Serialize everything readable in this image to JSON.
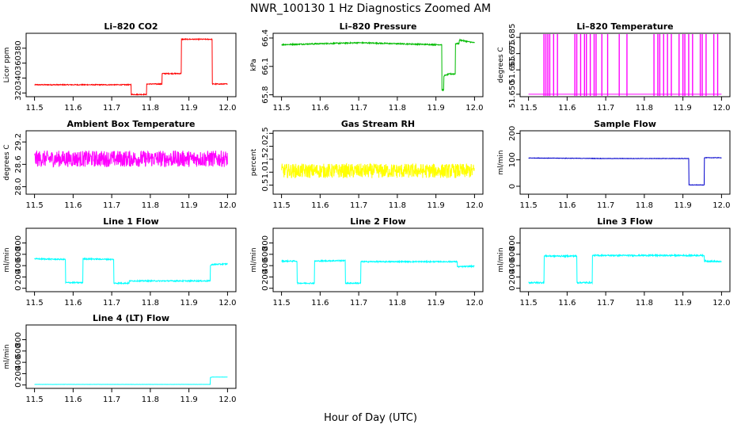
{
  "figure": {
    "title": "NWR_100130  1 Hz Diagnostics Zoomed AM",
    "xlabel": "Hour of Day (UTC)"
  },
  "chart_data": [
    {
      "type": "line",
      "title": "Li–820 CO2",
      "ylabel": "Licor ppm",
      "color": "#ff0000",
      "xlim": [
        11.5,
        12.0
      ],
      "ylim": [
        315,
        400
      ],
      "xticks": [
        11.5,
        11.6,
        11.7,
        11.8,
        11.9,
        12.0
      ],
      "xtick_labels": [
        "11.5",
        "11.6",
        "11.7",
        "11.8",
        "11.9",
        "12.0"
      ],
      "yticks": [
        320,
        340,
        360,
        380
      ],
      "ytick_labels": [
        "320",
        "340",
        "360",
        "380"
      ],
      "x": [
        11.5,
        11.6,
        11.75,
        11.75,
        11.79,
        11.79,
        11.83,
        11.83,
        11.88,
        11.88,
        11.96,
        11.96,
        12.0
      ],
      "y": [
        331,
        331,
        331,
        318,
        318,
        332,
        332,
        346,
        346,
        392,
        392,
        332,
        332
      ],
      "noise": 0.6,
      "spikes": []
    },
    {
      "type": "line",
      "title": "Li–820 Pressure",
      "ylabel": "kPa",
      "color": "#00bb00",
      "xlim": [
        11.5,
        12.0
      ],
      "ylim": [
        65.78,
        66.45
      ],
      "xticks": [
        11.5,
        11.6,
        11.7,
        11.8,
        11.9,
        12.0
      ],
      "xtick_labels": [
        "11.5",
        "11.6",
        "11.7",
        "11.8",
        "11.9",
        "12.0"
      ],
      "yticks": [
        65.8,
        66.1,
        66.4
      ],
      "ytick_labels": [
        "65.8",
        "66.1",
        "66.4"
      ],
      "x": [
        11.5,
        11.6,
        11.7,
        11.8,
        11.9,
        11.915,
        11.915,
        11.92,
        11.92,
        11.935,
        11.95,
        11.95,
        11.96,
        11.96,
        11.985,
        12.0
      ],
      "y": [
        66.33,
        66.34,
        66.35,
        66.34,
        66.33,
        66.33,
        65.85,
        65.85,
        66.0,
        66.02,
        66.02,
        66.34,
        66.34,
        66.38,
        66.36,
        66.35
      ],
      "noise": 0.006,
      "spikes": []
    },
    {
      "type": "line",
      "title": "Li–820 Temperature",
      "ylabel": "degrees C",
      "color": "#ff00ff",
      "xlim": [
        11.5,
        12.0
      ],
      "ylim": [
        51.6485,
        51.6875
      ],
      "xticks": [
        11.5,
        11.6,
        11.7,
        11.8,
        11.9,
        12.0
      ],
      "xtick_labels": [
        "11.5",
        "11.6",
        "11.7",
        "11.8",
        "11.9",
        "12.0"
      ],
      "yticks": [
        51.65,
        51.665,
        51.675,
        51.685
      ],
      "ytick_labels": [
        "51.650",
        "51.665",
        "51.675",
        "51.685"
      ],
      "x": [
        11.5,
        12.0
      ],
      "y": [
        51.65,
        51.65
      ],
      "noise": 0,
      "spikes": [
        11.54,
        11.545,
        11.55,
        11.555,
        11.565,
        11.575,
        11.62,
        11.625,
        11.635,
        11.645,
        11.65,
        11.66,
        11.67,
        11.675,
        11.69,
        11.705,
        11.735,
        11.755,
        11.825,
        11.835,
        11.84,
        11.85,
        11.86,
        11.87,
        11.89,
        11.9,
        11.905,
        11.915,
        11.925,
        11.945,
        11.95,
        11.96,
        11.98,
        11.99
      ]
    },
    {
      "type": "line",
      "title": "Ambient Box Temperature",
      "ylabel": "degrees C",
      "color": "#ff00ff",
      "xlim": [
        11.5,
        12.0
      ],
      "ylim": [
        27.8,
        29.5
      ],
      "xticks": [
        11.5,
        11.6,
        11.7,
        11.8,
        11.9,
        12.0
      ],
      "xtick_labels": [
        "11.5",
        "11.6",
        "11.7",
        "11.8",
        "11.9",
        "12.0"
      ],
      "yticks": [
        28.0,
        28.6,
        29.2
      ],
      "ytick_labels": [
        "28.0",
        "28.6",
        "29.2"
      ],
      "x": [
        11.5,
        12.0
      ],
      "y": [
        28.75,
        28.75
      ],
      "noise": 0.22,
      "spikes": []
    },
    {
      "type": "line",
      "title": "Gas Stream RH",
      "ylabel": "percent",
      "color": "#ffff00",
      "xlim": [
        11.5,
        12.0
      ],
      "ylim": [
        0.15,
        2.6
      ],
      "xticks": [
        11.5,
        11.6,
        11.7,
        11.8,
        11.9,
        12.0
      ],
      "xtick_labels": [
        "11.5",
        "11.6",
        "11.7",
        "11.8",
        "11.9",
        "12.0"
      ],
      "yticks": [
        0.5,
        1.0,
        1.5,
        2.0,
        2.5
      ],
      "ytick_labels": [
        "0.5",
        "1.0",
        "1.5",
        "2.0",
        "2.5"
      ],
      "x": [
        11.5,
        12.0
      ],
      "y": [
        1.05,
        1.05
      ],
      "noise": 0.28,
      "spikes": []
    },
    {
      "type": "line",
      "title": "Sample Flow",
      "ylabel": "ml/min",
      "color": "#0000cc",
      "xlim": [
        11.5,
        12.0
      ],
      "ylim": [
        -30,
        210
      ],
      "xticks": [
        11.5,
        11.6,
        11.7,
        11.8,
        11.9,
        12.0
      ],
      "xtick_labels": [
        "11.5",
        "11.6",
        "11.7",
        "11.8",
        "11.9",
        "12.0"
      ],
      "yticks": [
        0,
        100,
        200
      ],
      "ytick_labels": [
        "0",
        "100",
        "200"
      ],
      "x": [
        11.5,
        11.6,
        11.7,
        11.8,
        11.91,
        11.915,
        11.915,
        11.955,
        11.955,
        12.0
      ],
      "y": [
        107,
        106,
        105,
        105,
        105,
        105,
        5,
        5,
        108,
        108
      ],
      "noise": 0.8,
      "spikes": []
    },
    {
      "type": "line",
      "title": "Line 1 Flow",
      "ylabel": "ml/min",
      "color": "#00ffff",
      "xlim": [
        11.5,
        12.0
      ],
      "ylim": [
        -60,
        1060
      ],
      "xticks": [
        11.5,
        11.6,
        11.7,
        11.8,
        11.9,
        12.0
      ],
      "xtick_labels": [
        "11.5",
        "11.6",
        "11.7",
        "11.8",
        "11.9",
        "12.0"
      ],
      "yticks": [
        0,
        200,
        400,
        600,
        800
      ],
      "ytick_labels": [
        "0",
        "200",
        "400",
        "600",
        "800"
      ],
      "x": [
        11.5,
        11.58,
        11.58,
        11.625,
        11.625,
        11.705,
        11.705,
        11.745,
        11.745,
        11.955,
        11.955,
        11.96,
        12.0
      ],
      "y": [
        520,
        510,
        100,
        100,
        520,
        510,
        90,
        90,
        130,
        130,
        400,
        420,
        430
      ],
      "noise": 10,
      "spikes": []
    },
    {
      "type": "line",
      "title": "Line 2 Flow",
      "ylabel": "ml/min",
      "color": "#00ffff",
      "xlim": [
        11.5,
        12.0
      ],
      "ylim": [
        -60,
        1060
      ],
      "xticks": [
        11.5,
        11.6,
        11.7,
        11.8,
        11.9,
        12.0
      ],
      "xtick_labels": [
        "11.5",
        "11.6",
        "11.7",
        "11.8",
        "11.9",
        "12.0"
      ],
      "yticks": [
        0,
        200,
        400,
        600,
        800
      ],
      "ytick_labels": [
        "0",
        "200",
        "400",
        "600",
        "800"
      ],
      "x": [
        11.5,
        11.54,
        11.54,
        11.585,
        11.585,
        11.665,
        11.665,
        11.705,
        11.705,
        11.955,
        11.955,
        12.0
      ],
      "y": [
        480,
        480,
        90,
        90,
        480,
        490,
        90,
        90,
        470,
        470,
        380,
        390
      ],
      "noise": 10,
      "spikes": []
    },
    {
      "type": "line",
      "title": "Line 3 Flow",
      "ylabel": "ml/min",
      "color": "#00ffff",
      "xlim": [
        11.5,
        12.0
      ],
      "ylim": [
        -60,
        1060
      ],
      "xticks": [
        11.5,
        11.6,
        11.7,
        11.8,
        11.9,
        12.0
      ],
      "xtick_labels": [
        "11.5",
        "11.6",
        "11.7",
        "11.8",
        "11.9",
        "12.0"
      ],
      "yticks": [
        0,
        200,
        400,
        600,
        800
      ],
      "ytick_labels": [
        "0",
        "200",
        "400",
        "600",
        "800"
      ],
      "x": [
        11.5,
        11.54,
        11.54,
        11.625,
        11.625,
        11.665,
        11.665,
        11.955,
        11.955,
        12.0
      ],
      "y": [
        100,
        100,
        570,
        570,
        100,
        100,
        580,
        580,
        480,
        470
      ],
      "noise": 12,
      "spikes": []
    },
    {
      "type": "line",
      "title": "Line 4 (LT) Flow",
      "ylabel": "ml/min",
      "color": "#00ffff",
      "xlim": [
        11.5,
        12.0
      ],
      "ylim": [
        -60,
        1060
      ],
      "xticks": [
        11.5,
        11.6,
        11.7,
        11.8,
        11.9,
        12.0
      ],
      "xtick_labels": [
        "11.5",
        "11.6",
        "11.7",
        "11.8",
        "11.9",
        "12.0"
      ],
      "yticks": [
        0,
        200,
        400,
        600,
        800
      ],
      "ytick_labels": [
        "0",
        "200",
        "400",
        "600",
        "800"
      ],
      "x": [
        11.5,
        11.955,
        11.955,
        11.96,
        12.0
      ],
      "y": [
        10,
        10,
        130,
        140,
        140
      ],
      "noise": 1.5,
      "spikes": []
    }
  ]
}
